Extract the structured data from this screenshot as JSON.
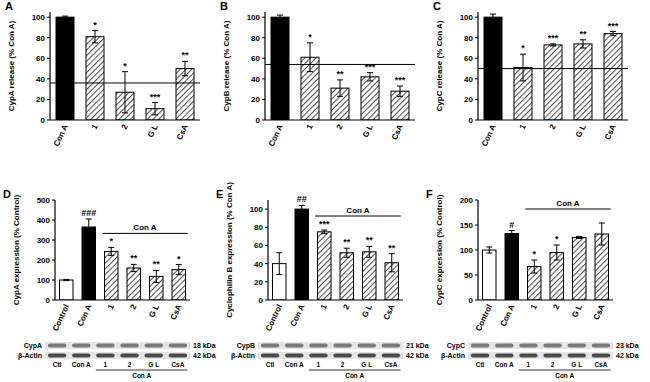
{
  "chart_data": [
    {
      "type": "bar",
      "title": "A",
      "y_label": "CypA release (% Con A)",
      "categories": [
        "Con A",
        "1",
        "2",
        "G L",
        "CsA"
      ],
      "values": [
        100,
        81,
        27,
        11,
        50
      ],
      "errors": [
        1,
        6,
        20,
        6,
        7
      ],
      "annotations": [
        null,
        "*",
        "*",
        "***",
        "**"
      ],
      "reference_line": 36,
      "colors": [
        "#000000",
        "#555555",
        "#555555",
        "#555555",
        "#555555"
      ],
      "ylim": [
        0,
        105
      ],
      "yticks": [
        0,
        20,
        40,
        60,
        80,
        100
      ]
    },
    {
      "type": "bar",
      "title": "B",
      "y_label": "CypB release (% Con A)",
      "categories": [
        "Con A",
        "1",
        "2",
        "G L",
        "CsA"
      ],
      "values": [
        100,
        61,
        31,
        42,
        28
      ],
      "errors": [
        2,
        14,
        8,
        4,
        5
      ],
      "annotations": [
        null,
        "*",
        "**",
        "***",
        "***"
      ],
      "reference_line": 54,
      "colors": [
        "#000000",
        "#555555",
        "#555555",
        "#555555",
        "#555555"
      ],
      "ylim": [
        0,
        105
      ],
      "yticks": [
        0,
        20,
        40,
        60,
        80,
        100
      ]
    },
    {
      "type": "bar",
      "title": "C",
      "y_label": "CypC release (% Con A)",
      "categories": [
        "Con A",
        "1",
        "2",
        "G L",
        "CsA"
      ],
      "values": [
        100,
        51,
        73,
        74,
        84
      ],
      "errors": [
        3,
        13,
        1,
        4,
        2
      ],
      "annotations": [
        null,
        "*",
        "***",
        "**",
        "***"
      ],
      "reference_line": 50,
      "colors": [
        "#000000",
        "#555555",
        "#555555",
        "#555555",
        "#555555"
      ],
      "ylim": [
        0,
        105
      ],
      "yticks": [
        0,
        20,
        40,
        60,
        80,
        100
      ]
    },
    {
      "type": "bar",
      "title": "D",
      "y_label": "CypA expression (% Control)",
      "categories": [
        "Control",
        "Con A",
        "1",
        "2",
        "G L",
        "CsA"
      ],
      "values": [
        100,
        365,
        243,
        160,
        118,
        152
      ],
      "errors": [
        3,
        40,
        20,
        18,
        30,
        25
      ],
      "annotations": [
        null,
        "###",
        "*",
        "**",
        "**",
        "*"
      ],
      "group_label": "Con A",
      "colors": [
        "#ffffff",
        "#000000",
        "#555555",
        "#555555",
        "#555555",
        "#555555"
      ],
      "ylim": [
        0,
        500
      ],
      "yticks": [
        0,
        100,
        200,
        300,
        400,
        500
      ],
      "blot": {
        "bands": [
          {
            "label": "CypA",
            "size": "18 kDa"
          },
          {
            "label": "β-Actin",
            "size": "42 kDa"
          }
        ],
        "lanes": [
          "Ctl",
          "Con A",
          "1",
          "2",
          "G L",
          "CsA"
        ],
        "group_label": "Con A"
      }
    },
    {
      "type": "bar",
      "title": "E",
      "y_label": "Cyclophilin B expression (% Con A)",
      "categories": [
        "Control",
        "Con A",
        "1",
        "2",
        "G L",
        "CsA"
      ],
      "values": [
        40,
        100,
        75,
        52,
        53,
        41
      ],
      "errors": [
        12,
        4,
        2,
        5,
        6,
        10
      ],
      "annotations": [
        null,
        "##",
        "***",
        "**",
        "**",
        "**"
      ],
      "group_label": "Con A",
      "colors": [
        "#ffffff",
        "#000000",
        "#555555",
        "#555555",
        "#555555",
        "#555555"
      ],
      "ylim": [
        0,
        110
      ],
      "yticks": [
        0,
        20,
        40,
        60,
        80,
        100
      ],
      "blot": {
        "bands": [
          {
            "label": "CypB",
            "size": "21 kDa"
          },
          {
            "label": "β-Actin",
            "size": "42 kDa"
          }
        ],
        "lanes": [
          "Ctl",
          "Con A",
          "1",
          "2",
          "G L",
          "CsA"
        ],
        "group_label": "Con A"
      }
    },
    {
      "type": "bar",
      "title": "F",
      "y_label": "CypC expression (% Control)",
      "categories": [
        "Control",
        "Con A",
        "1",
        "2",
        "G L",
        "CsA"
      ],
      "values": [
        100,
        133,
        67,
        95,
        125,
        132
      ],
      "errors": [
        6,
        6,
        13,
        15,
        2,
        22
      ],
      "annotations": [
        null,
        "#",
        "*",
        "*",
        null,
        null
      ],
      "group_label": "Con A",
      "colors": [
        "#ffffff",
        "#000000",
        "#555555",
        "#555555",
        "#555555",
        "#555555"
      ],
      "ylim": [
        0,
        200
      ],
      "yticks": [
        0,
        50,
        100,
        150,
        200
      ],
      "blot": {
        "bands": [
          {
            "label": "CypC",
            "size": "23 kDa"
          },
          {
            "label": "β-Actin",
            "size": "42 kDa"
          }
        ],
        "lanes": [
          "Ctl",
          "Con A",
          "1",
          "2",
          "G L",
          "CsA"
        ],
        "group_label": "Con A"
      }
    }
  ]
}
